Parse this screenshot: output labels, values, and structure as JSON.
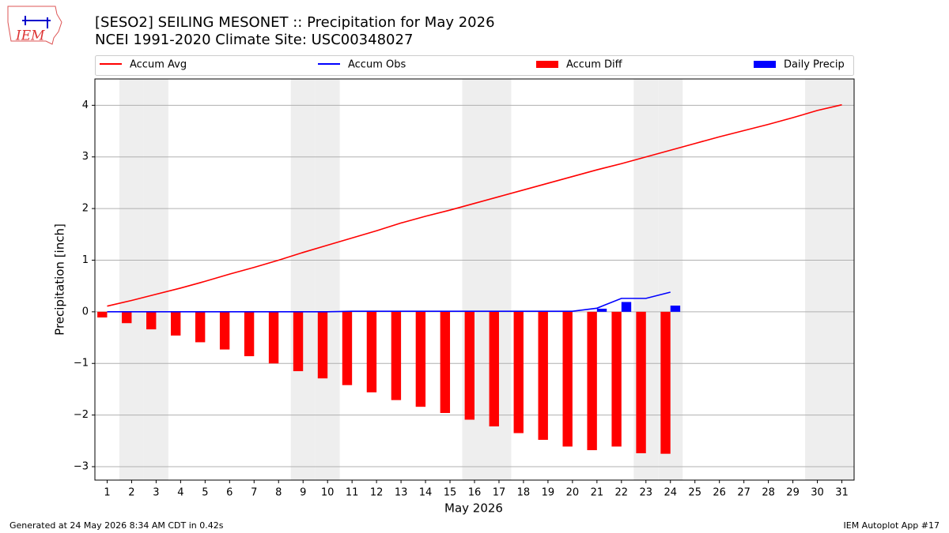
{
  "chart_data": {
    "type": "bar",
    "title": "[SESO2] SEILING MESONET :: Precipitation for May 2026",
    "subtitle": "NCEI 1991-2020 Climate Site: USC00348027",
    "xlabel": "May 2026",
    "ylabel": "Precipitation [inch]",
    "footer_left": "Generated at 24 May 2026 8:34 AM CDT in 0.42s",
    "footer_right": "IEM Autoplot App #17",
    "logo_text": "IEM",
    "x": [
      1,
      2,
      3,
      4,
      5,
      6,
      7,
      8,
      9,
      10,
      11,
      12,
      13,
      14,
      15,
      16,
      17,
      18,
      19,
      20,
      21,
      22,
      23,
      24,
      25,
      26,
      27,
      28,
      29,
      30,
      31
    ],
    "xlim": [
      0.5,
      31.5
    ],
    "xticks": [
      1,
      2,
      3,
      4,
      5,
      6,
      7,
      8,
      9,
      10,
      11,
      12,
      13,
      14,
      15,
      16,
      17,
      18,
      19,
      20,
      21,
      22,
      23,
      24,
      25,
      26,
      27,
      28,
      29,
      30,
      31
    ],
    "ylim": [
      -3.26,
      4.51
    ],
    "yticks": [
      {
        "value": -3,
        "label": "−3"
      },
      {
        "value": -2,
        "label": "−2"
      },
      {
        "value": -1,
        "label": "−1"
      },
      0,
      1,
      2,
      3,
      4
    ],
    "grid": true,
    "shaded_days": [
      2,
      3,
      9,
      10,
      16,
      17,
      23,
      24,
      30,
      31
    ],
    "shade_color": "#eeeeee",
    "series": [
      {
        "name": "Accum Avg",
        "kind": "line",
        "color": "#ff0000",
        "values": [
          0.11,
          0.22,
          0.34,
          0.46,
          0.59,
          0.73,
          0.86,
          1.0,
          1.15,
          1.29,
          1.43,
          1.57,
          1.72,
          1.85,
          1.97,
          2.1,
          2.23,
          2.36,
          2.49,
          2.62,
          2.75,
          2.87,
          3.0,
          3.13,
          3.26,
          3.39,
          3.51,
          3.63,
          3.76,
          3.9,
          4.01
        ]
      },
      {
        "name": "Accum Obs",
        "kind": "line",
        "color": "#0000ff",
        "values": [
          0,
          0,
          0,
          0,
          0,
          0,
          0,
          0,
          0,
          0,
          0.01,
          0.01,
          0.01,
          0.01,
          0.01,
          0.01,
          0.01,
          0.01,
          0.01,
          0.01,
          0.07,
          0.26,
          0.26,
          0.38,
          null,
          null,
          null,
          null,
          null,
          null,
          null
        ]
      },
      {
        "name": "Accum Diff",
        "kind": "bar",
        "offset": "left",
        "color": "#ff0000",
        "values": [
          -0.11,
          -0.22,
          -0.34,
          -0.46,
          -0.59,
          -0.73,
          -0.86,
          -1.0,
          -1.15,
          -1.29,
          -1.42,
          -1.56,
          -1.71,
          -1.84,
          -1.96,
          -2.09,
          -2.22,
          -2.35,
          -2.48,
          -2.61,
          -2.68,
          -2.61,
          -2.74,
          -2.75,
          null,
          null,
          null,
          null,
          null,
          null,
          null
        ]
      },
      {
        "name": "Daily Precip",
        "kind": "bar",
        "offset": "right",
        "color": "#0000ff",
        "values": [
          0,
          0,
          0,
          0,
          0,
          0,
          0,
          0,
          0,
          0,
          0.01,
          0,
          0,
          0,
          0,
          0,
          0,
          0,
          0,
          0,
          0.06,
          0.19,
          0,
          0.12,
          null,
          null,
          null,
          null,
          null,
          null,
          null
        ]
      }
    ]
  }
}
